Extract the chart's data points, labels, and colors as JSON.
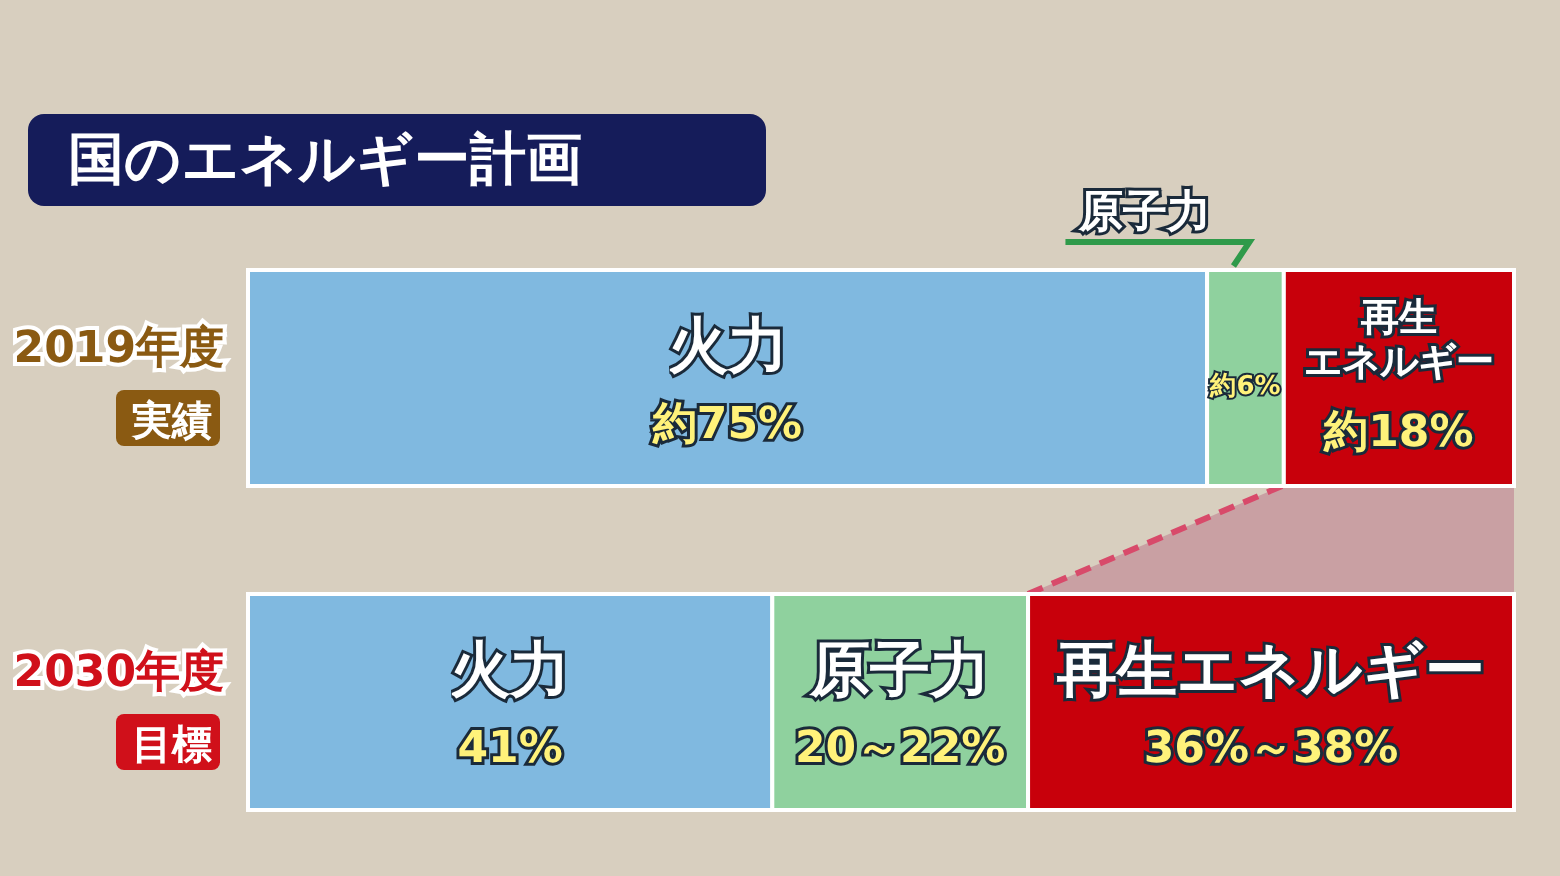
{
  "chart_data": {
    "type": "bar",
    "orientation": "horizontal",
    "stacked": true,
    "title": "国のエネルギー計画",
    "categories": [
      "2019年度実績",
      "2030年度目標"
    ],
    "annotations": [
      "火力",
      "原子力",
      "再生エネルギー"
    ],
    "series": [
      {
        "name": "火力",
        "color": "#80b9e0",
        "values": [
          75,
          41
        ],
        "value_labels": [
          "約75%",
          "41%"
        ]
      },
      {
        "name": "原子力",
        "color": "#8fd19e",
        "values": [
          6,
          20
        ],
        "value_labels": [
          "約6%",
          "20～22%"
        ]
      },
      {
        "name": "再生エネルギー",
        "color": "#c8000b",
        "values": [
          18,
          38
        ],
        "value_labels": [
          "約18%",
          "36%～38%"
        ]
      }
    ],
    "data_labels": false,
    "legend": false,
    "grid": false
  }
}
